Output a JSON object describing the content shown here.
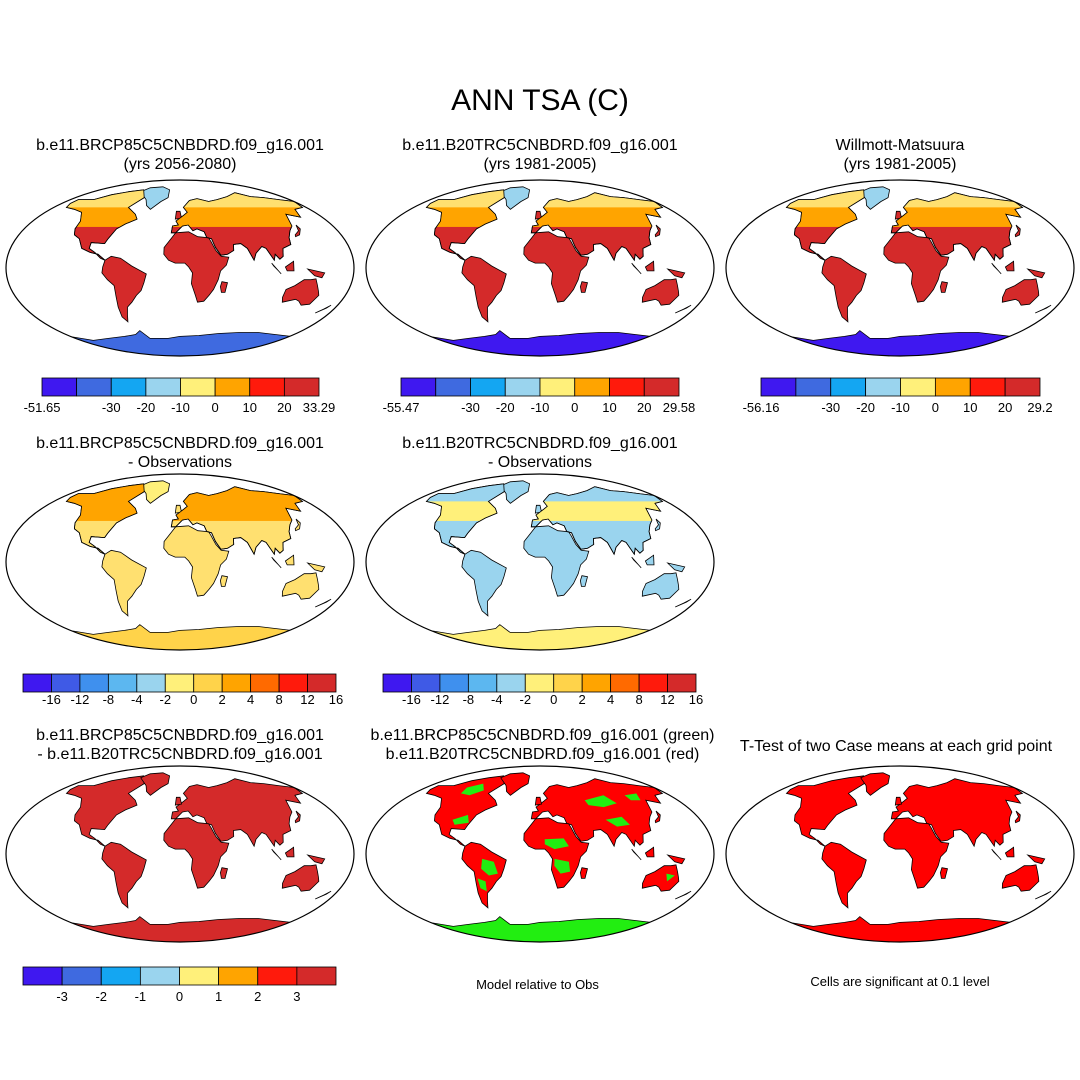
{
  "figure": {
    "title": "ANN TSA (C)"
  },
  "panels": [
    {
      "id": "p1",
      "title_line1": "b.e11.BRCP85C5CNBDRD.f09_g16.001",
      "title_line2": "(yrs 2056-2080)",
      "palette": "abs_future"
    },
    {
      "id": "p2",
      "title_line1": "b.e11.B20TRC5CNBDRD.f09_g16.001",
      "title_line2": "(yrs 1981-2005)",
      "palette": "abs_hist"
    },
    {
      "id": "p3",
      "title_line1": "Willmott-Matsuura",
      "title_line2": "(yrs 1981-2005)",
      "palette": "abs_obs"
    },
    {
      "id": "p4",
      "title_line1": "b.e11.BRCP85C5CNBDRD.f09_g16.001",
      "title_line2": "- Observations",
      "palette": "diff_future"
    },
    {
      "id": "p5",
      "title_line1": "b.e11.B20TRC5CNBDRD.f09_g16.001",
      "title_line2": "- Observations",
      "palette": "diff_hist"
    },
    {
      "id": "p6",
      "title_line1": "b.e11.BRCP85C5CNBDRD.f09_g16.001",
      "title_line2": "- b.e11.B20TRC5CNBDRD.f09_g16.001",
      "palette": "case_diff"
    },
    {
      "id": "p7",
      "title_line1": "b.e11.BRCP85C5CNBDRD.f09_g16.001 (green)",
      "title_line2": "b.e11.B20TRC5CNBDRD.f09_g16.001 (red)",
      "palette": "rel_obs"
    },
    {
      "id": "p8",
      "title_line1": "T-Test of two Case means at each grid point",
      "title_line2": "",
      "palette": "ttest"
    }
  ],
  "colorbars": [
    {
      "id": "cb1",
      "colors": [
        "#3f18f0",
        "#3f6ae0",
        "#14a6f2",
        "#9ad4ee",
        "#fff07a",
        "#ffa400",
        "#ff1a0c",
        "#d42a2a"
      ],
      "ticks": [
        "-51.65",
        "-30",
        "-20",
        "-10",
        "0",
        "10",
        "20",
        "33.29"
      ]
    },
    {
      "id": "cb2",
      "colors": [
        "#3f18f0",
        "#3f6ae0",
        "#14a6f2",
        "#9ad4ee",
        "#fff07a",
        "#ffa400",
        "#ff1a0c",
        "#d42a2a"
      ],
      "ticks": [
        "-55.47",
        "-30",
        "-20",
        "-10",
        "0",
        "10",
        "20",
        "29.58"
      ]
    },
    {
      "id": "cb3",
      "colors": [
        "#3f18f0",
        "#3f6ae0",
        "#14a6f2",
        "#9ad4ee",
        "#fff07a",
        "#ffa400",
        "#ff1a0c",
        "#d42a2a"
      ],
      "ticks": [
        "-56.16",
        "-30",
        "-20",
        "-10",
        "0",
        "10",
        "20",
        "29.2"
      ]
    },
    {
      "id": "cb4",
      "colors": [
        "#3f18f0",
        "#3f5ae6",
        "#3f90ee",
        "#5cb7f0",
        "#9ad4ee",
        "#fff07a",
        "#ffd34a",
        "#ffa400",
        "#ff6a00",
        "#ff1a0c",
        "#d42a2a"
      ],
      "ticks": [
        "-16",
        "-12",
        "-8",
        "-4",
        "-2",
        "0",
        "2",
        "4",
        "8",
        "12",
        "16"
      ]
    },
    {
      "id": "cb5",
      "colors": [
        "#3f18f0",
        "#3f5ae6",
        "#3f90ee",
        "#5cb7f0",
        "#9ad4ee",
        "#fff07a",
        "#ffd34a",
        "#ffa400",
        "#ff6a00",
        "#ff1a0c",
        "#d42a2a"
      ],
      "ticks": [
        "-16",
        "-12",
        "-8",
        "-4",
        "-2",
        "0",
        "2",
        "4",
        "8",
        "12",
        "16"
      ]
    },
    {
      "id": "cb6",
      "colors": [
        "#3f18f0",
        "#3f6ae0",
        "#14a6f2",
        "#9ad4ee",
        "#fff07a",
        "#ffa400",
        "#ff1a0c",
        "#d42a2a"
      ],
      "ticks": [
        "-3",
        "-2",
        "-1",
        "0",
        "1",
        "2",
        "3"
      ]
    }
  ],
  "captions": {
    "model_relative": "Model relative to Obs",
    "significance": "Cells are significant at 0.1 level"
  },
  "palettes": {
    "abs_future": {
      "ocean": "#ffffff",
      "land": "#d42a2a",
      "north": "#ffa400",
      "arctic": "#ffe070",
      "antarctic": "#3f6ae0",
      "greenland": "#9ad4ee"
    },
    "abs_hist": {
      "ocean": "#ffffff",
      "land": "#d42a2a",
      "north": "#ffa400",
      "arctic": "#ffe070",
      "antarctic": "#3f18f0",
      "greenland": "#9ad4ee"
    },
    "abs_obs": {
      "ocean": "#ffffff",
      "land": "#d42a2a",
      "north": "#ffa400",
      "arctic": "#ffe070",
      "antarctic": "#3f18f0",
      "greenland": "#9ad4ee"
    },
    "diff_future": {
      "ocean": "#ffffff",
      "land": "#ffe070",
      "north": "#ffa400",
      "arctic": "#ffa400",
      "antarctic": "#ffd34a",
      "greenland": "#fff07a"
    },
    "diff_hist": {
      "ocean": "#ffffff",
      "land": "#9ad4ee",
      "north": "#fff07a",
      "arctic": "#9ad4ee",
      "antarctic": "#fff07a",
      "greenland": "#9ad4ee"
    },
    "case_diff": {
      "ocean": "#ffffff",
      "land": "#d42a2a",
      "north": "#d42a2a",
      "arctic": "#d42a2a",
      "antarctic": "#d42a2a",
      "greenland": "#d42a2a"
    },
    "rel_obs": {
      "ocean": "#ffffff",
      "land": "#ff0000",
      "north": "#ff0000",
      "arctic": "#ff0000",
      "antarctic": "#22ee11",
      "greenland": "#ff0000",
      "patch": "#22ee11"
    },
    "ttest": {
      "ocean": "#ffffff",
      "land": "#ff0000",
      "north": "#ff0000",
      "arctic": "#ff0000",
      "antarctic": "#ff0000",
      "greenland": "#ff0000"
    }
  }
}
